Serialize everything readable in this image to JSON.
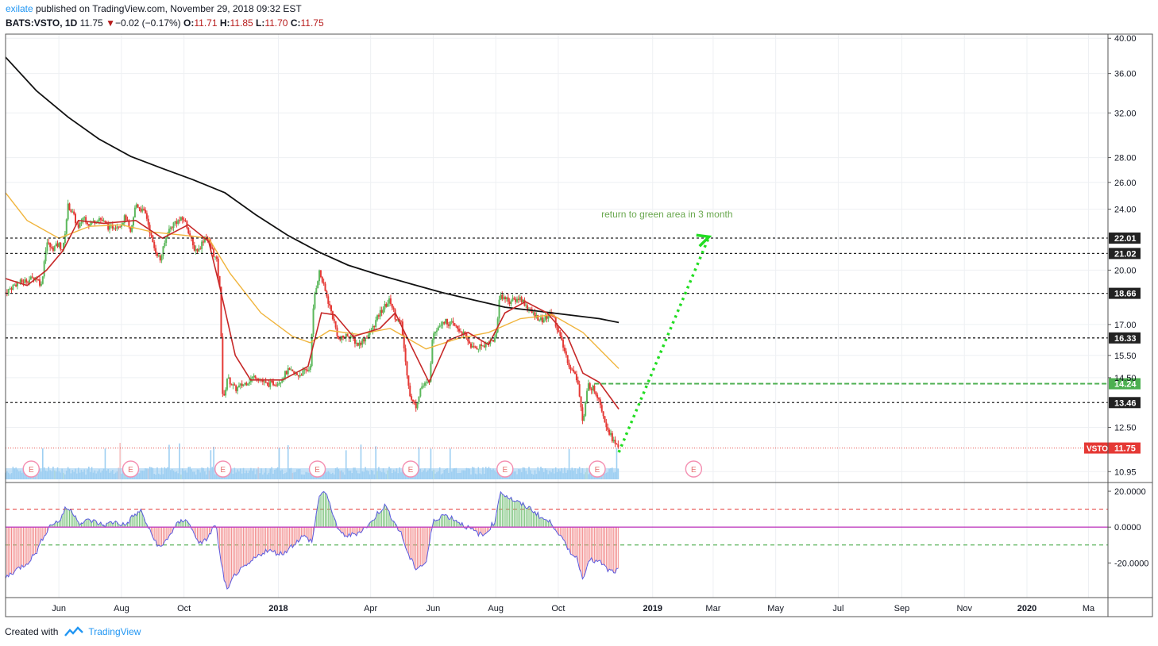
{
  "header": {
    "user": "exilate",
    "published": "published on TradingView.com, November 29, 2018 09:32 EST",
    "symbol": "BATS:VSTO, 1D",
    "last": "11.75",
    "change": "−0.02 (−0.17%)",
    "o_label": "O:",
    "o": "11.71",
    "h_label": "H:",
    "h": "11.85",
    "l_label": "L:",
    "l": "11.70",
    "c_label": "C:",
    "c": "11.75"
  },
  "footer": {
    "created": "Created with",
    "brand": "TradingView"
  },
  "colors": {
    "up": "#5cb85c",
    "down": "#e53935",
    "ma_short": "#c62828",
    "ma_mid": "#f0b43c",
    "ma_long": "#111111",
    "volume": "#9ecff2",
    "arrow": "#22dd22",
    "green_line": "#4caf50",
    "osc_up": "#79c27a",
    "osc_down": "#f28c8c",
    "osc_line": "#5c5ce0",
    "zero_line": "#c040c0"
  },
  "chart_data": {
    "type": "candlestick",
    "y_scale": "log",
    "ylim": [
      10.7,
      40.5
    ],
    "xlim": [
      "2017-04-10",
      "2020-03-20"
    ],
    "x_ticks": [
      {
        "date": "2017-06-01",
        "label": "Jun",
        "bold": false
      },
      {
        "date": "2017-08-01",
        "label": "Aug",
        "bold": false
      },
      {
        "date": "2017-10-01",
        "label": "Oct",
        "bold": false
      },
      {
        "date": "2018-01-01",
        "label": "2018",
        "bold": true
      },
      {
        "date": "2018-04-01",
        "label": "Apr",
        "bold": false
      },
      {
        "date": "2018-06-01",
        "label": "Jun",
        "bold": false
      },
      {
        "date": "2018-08-01",
        "label": "Aug",
        "bold": false
      },
      {
        "date": "2018-10-01",
        "label": "Oct",
        "bold": false
      },
      {
        "date": "2019-01-01",
        "label": "2019",
        "bold": true
      },
      {
        "date": "2019-03-01",
        "label": "Mar",
        "bold": false
      },
      {
        "date": "2019-05-01",
        "label": "May",
        "bold": false
      },
      {
        "date": "2019-07-01",
        "label": "Jul",
        "bold": false
      },
      {
        "date": "2019-09-01",
        "label": "Sep",
        "bold": false
      },
      {
        "date": "2019-11-01",
        "label": "Nov",
        "bold": false
      },
      {
        "date": "2020-01-01",
        "label": "2020",
        "bold": true
      },
      {
        "date": "2020-03-01",
        "label": "Ma",
        "bold": false
      }
    ],
    "y_ticks": [
      "40.00",
      "36.00",
      "32.00",
      "28.00",
      "26.00",
      "24.00",
      "20.00",
      "17.00",
      "15.50",
      "14.50",
      "12.50",
      "10.95"
    ],
    "close_path": [
      [
        "2017-04-10",
        18.7
      ],
      [
        "2017-04-20",
        19.2
      ],
      [
        "2017-05-01",
        19.4
      ],
      [
        "2017-05-10",
        19.6
      ],
      [
        "2017-05-15",
        19.1
      ],
      [
        "2017-05-20",
        21.8
      ],
      [
        "2017-05-25",
        21.3
      ],
      [
        "2017-06-01",
        21.6
      ],
      [
        "2017-06-05",
        21.2
      ],
      [
        "2017-06-10",
        24.3
      ],
      [
        "2017-06-15",
        23.6
      ],
      [
        "2017-06-20",
        22.6
      ],
      [
        "2017-06-25",
        23.5
      ],
      [
        "2017-07-01",
        22.9
      ],
      [
        "2017-07-10",
        23.4
      ],
      [
        "2017-07-20",
        22.7
      ],
      [
        "2017-08-01",
        23.0
      ],
      [
        "2017-08-05",
        23.5
      ],
      [
        "2017-08-10",
        22.2
      ],
      [
        "2017-08-15",
        24.4
      ],
      [
        "2017-08-25",
        23.6
      ],
      [
        "2017-09-01",
        21.5
      ],
      [
        "2017-09-08",
        20.6
      ],
      [
        "2017-09-15",
        22.4
      ],
      [
        "2017-09-22",
        23.1
      ],
      [
        "2017-10-01",
        23.3
      ],
      [
        "2017-10-05",
        22.6
      ],
      [
        "2017-10-10",
        21.4
      ],
      [
        "2017-10-15",
        21.2
      ],
      [
        "2017-10-22",
        22.2
      ],
      [
        "2017-10-28",
        21.3
      ],
      [
        "2017-11-02",
        20.5
      ],
      [
        "2017-11-05",
        18.8
      ],
      [
        "2017-11-08",
        13.3
      ],
      [
        "2017-11-12",
        14.5
      ],
      [
        "2017-11-20",
        14.0
      ],
      [
        "2017-12-01",
        14.3
      ],
      [
        "2017-12-10",
        14.6
      ],
      [
        "2017-12-20",
        14.2
      ],
      [
        "2018-01-01",
        14.3
      ],
      [
        "2018-01-10",
        14.8
      ],
      [
        "2018-01-20",
        14.6
      ],
      [
        "2018-02-01",
        14.9
      ],
      [
        "2018-02-05",
        18.5
      ],
      [
        "2018-02-10",
        19.9
      ],
      [
        "2018-02-15",
        18.9
      ],
      [
        "2018-02-25",
        17.0
      ],
      [
        "2018-03-01",
        16.2
      ],
      [
        "2018-03-10",
        16.5
      ],
      [
        "2018-03-20",
        16.0
      ],
      [
        "2018-04-01",
        16.6
      ],
      [
        "2018-04-10",
        17.6
      ],
      [
        "2018-04-20",
        18.3
      ],
      [
        "2018-04-25",
        17.4
      ],
      [
        "2018-05-01",
        17.0
      ],
      [
        "2018-05-05",
        15.2
      ],
      [
        "2018-05-10",
        13.6
      ],
      [
        "2018-05-15",
        13.3
      ],
      [
        "2018-05-20",
        14.1
      ],
      [
        "2018-05-28",
        14.3
      ],
      [
        "2018-06-01",
        16.6
      ],
      [
        "2018-06-10",
        17.2
      ],
      [
        "2018-06-20",
        17.0
      ],
      [
        "2018-07-01",
        16.5
      ],
      [
        "2018-07-10",
        15.8
      ],
      [
        "2018-07-20",
        16.0
      ],
      [
        "2018-08-01",
        16.3
      ],
      [
        "2018-08-05",
        18.6
      ],
      [
        "2018-08-15",
        18.2
      ],
      [
        "2018-08-25",
        18.4
      ],
      [
        "2018-09-05",
        17.6
      ],
      [
        "2018-09-15",
        17.2
      ],
      [
        "2018-09-25",
        17.6
      ],
      [
        "2018-10-05",
        16.0
      ],
      [
        "2018-10-12",
        15.0
      ],
      [
        "2018-10-20",
        14.4
      ],
      [
        "2018-10-25",
        12.6
      ],
      [
        "2018-10-30",
        14.2
      ],
      [
        "2018-11-05",
        14.0
      ],
      [
        "2018-11-10",
        13.6
      ],
      [
        "2018-11-15",
        12.8
      ],
      [
        "2018-11-20",
        12.3
      ],
      [
        "2018-11-25",
        11.9
      ],
      [
        "2018-11-29",
        11.75
      ]
    ],
    "ma_short": [
      [
        "2017-04-10",
        19.5
      ],
      [
        "2017-05-01",
        19.1
      ],
      [
        "2017-05-20",
        20.0
      ],
      [
        "2017-06-05",
        21.2
      ],
      [
        "2017-06-20",
        23.2
      ],
      [
        "2017-07-15",
        23.0
      ],
      [
        "2017-08-15",
        23.2
      ],
      [
        "2017-09-10",
        22.0
      ],
      [
        "2017-10-05",
        22.9
      ],
      [
        "2017-10-25",
        21.8
      ],
      [
        "2017-11-05",
        19.0
      ],
      [
        "2017-11-20",
        15.5
      ],
      [
        "2017-12-05",
        14.4
      ],
      [
        "2018-01-05",
        14.4
      ],
      [
        "2018-01-30",
        15.0
      ],
      [
        "2018-02-12",
        17.6
      ],
      [
        "2018-02-25",
        17.5
      ],
      [
        "2018-03-15",
        16.4
      ],
      [
        "2018-04-10",
        16.8
      ],
      [
        "2018-04-25",
        17.6
      ],
      [
        "2018-05-10",
        16.0
      ],
      [
        "2018-05-28",
        14.3
      ],
      [
        "2018-06-15",
        16.2
      ],
      [
        "2018-07-05",
        16.6
      ],
      [
        "2018-07-25",
        16.0
      ],
      [
        "2018-08-10",
        17.6
      ],
      [
        "2018-08-30",
        18.2
      ],
      [
        "2018-09-20",
        17.6
      ],
      [
        "2018-10-10",
        16.4
      ],
      [
        "2018-10-25",
        14.7
      ],
      [
        "2018-11-10",
        14.3
      ],
      [
        "2018-11-29",
        13.2
      ]
    ],
    "ma_mid": [
      [
        "2017-04-10",
        25.2
      ],
      [
        "2017-05-01",
        23.2
      ],
      [
        "2017-06-01",
        22.0
      ],
      [
        "2017-07-01",
        22.8
      ],
      [
        "2017-08-01",
        22.9
      ],
      [
        "2017-09-01",
        22.4
      ],
      [
        "2017-10-01",
        22.2
      ],
      [
        "2017-10-25",
        22.0
      ],
      [
        "2017-11-15",
        19.8
      ],
      [
        "2017-12-15",
        17.6
      ],
      [
        "2018-01-15",
        16.4
      ],
      [
        "2018-02-01",
        16.1
      ],
      [
        "2018-02-20",
        16.7
      ],
      [
        "2018-03-20",
        16.5
      ],
      [
        "2018-04-20",
        16.8
      ],
      [
        "2018-05-25",
        15.8
      ],
      [
        "2018-06-25",
        16.3
      ],
      [
        "2018-07-25",
        16.6
      ],
      [
        "2018-08-25",
        17.3
      ],
      [
        "2018-09-25",
        17.5
      ],
      [
        "2018-10-25",
        16.6
      ],
      [
        "2018-11-29",
        14.9
      ]
    ],
    "ma_long": [
      [
        "2017-04-10",
        37.8
      ],
      [
        "2017-05-10",
        34.2
      ],
      [
        "2017-06-10",
        31.6
      ],
      [
        "2017-07-10",
        29.6
      ],
      [
        "2017-08-10",
        28.1
      ],
      [
        "2017-09-10",
        27.1
      ],
      [
        "2017-10-10",
        26.2
      ],
      [
        "2017-11-10",
        25.2
      ],
      [
        "2017-12-10",
        23.6
      ],
      [
        "2018-01-10",
        22.2
      ],
      [
        "2018-02-10",
        21.1
      ],
      [
        "2018-03-10",
        20.3
      ],
      [
        "2018-04-10",
        19.7
      ],
      [
        "2018-05-10",
        19.2
      ],
      [
        "2018-06-10",
        18.7
      ],
      [
        "2018-07-10",
        18.3
      ],
      [
        "2018-08-10",
        17.9
      ],
      [
        "2018-09-10",
        17.7
      ],
      [
        "2018-10-10",
        17.5
      ],
      [
        "2018-11-10",
        17.3
      ],
      [
        "2018-11-29",
        17.1
      ]
    ],
    "h_levels": [
      {
        "value": 22.01,
        "label": "22.01",
        "style": "black"
      },
      {
        "value": 21.02,
        "label": "21.02",
        "style": "black"
      },
      {
        "value": 18.66,
        "label": "18.66",
        "style": "black"
      },
      {
        "value": 16.33,
        "label": "16.33",
        "style": "black"
      },
      {
        "value": 14.24,
        "label": "14.24",
        "style": "green",
        "from": "2018-11-05"
      },
      {
        "value": 13.46,
        "label": "13.46",
        "style": "black"
      }
    ],
    "last_price": {
      "symbol": "VSTO",
      "value": 11.75,
      "label": "11.75"
    },
    "earnings": [
      "2017-05-05",
      "2017-08-10",
      "2017-11-08",
      "2018-02-08",
      "2018-05-10",
      "2018-08-10",
      "2018-11-08",
      "2019-02-10"
    ],
    "earnings_label": "E",
    "annotation": {
      "text": "return to green area in 3 month",
      "date": "2019-01-15",
      "value": 23.4
    },
    "arrow": {
      "from": [
        "2018-11-29",
        11.6
      ],
      "to": [
        "2019-02-25",
        22.1
      ]
    },
    "oscillator": {
      "y_ticks": [
        "20.0000",
        "0.0000",
        "-20.0000"
      ],
      "ylim": [
        -38,
        24
      ],
      "upper": 10,
      "lower": -10,
      "values": [
        [
          "2017-04-10",
          -28
        ],
        [
          "2017-04-20",
          -24
        ],
        [
          "2017-05-01",
          -20
        ],
        [
          "2017-05-10",
          -14
        ],
        [
          "2017-05-18",
          -4
        ],
        [
          "2017-05-25",
          2
        ],
        [
          "2017-06-01",
          3
        ],
        [
          "2017-06-08",
          11
        ],
        [
          "2017-06-15",
          8
        ],
        [
          "2017-06-22",
          2
        ],
        [
          "2017-07-01",
          4
        ],
        [
          "2017-07-15",
          1
        ],
        [
          "2017-07-25",
          3
        ],
        [
          "2017-08-05",
          1
        ],
        [
          "2017-08-12",
          6
        ],
        [
          "2017-08-20",
          9
        ],
        [
          "2017-08-30",
          -4
        ],
        [
          "2017-09-08",
          -12
        ],
        [
          "2017-09-15",
          -6
        ],
        [
          "2017-09-25",
          2
        ],
        [
          "2017-10-03",
          5
        ],
        [
          "2017-10-10",
          -3
        ],
        [
          "2017-10-18",
          -10
        ],
        [
          "2017-10-25",
          -5
        ],
        [
          "2017-11-01",
          2
        ],
        [
          "2017-11-06",
          -20
        ],
        [
          "2017-11-12",
          -36
        ],
        [
          "2017-11-20",
          -26
        ],
        [
          "2017-12-01",
          -22
        ],
        [
          "2017-12-10",
          -17
        ],
        [
          "2017-12-20",
          -13
        ],
        [
          "2018-01-05",
          -15
        ],
        [
          "2018-01-15",
          -10
        ],
        [
          "2018-01-25",
          -5
        ],
        [
          "2018-02-03",
          -8
        ],
        [
          "2018-02-10",
          18
        ],
        [
          "2018-02-15",
          20
        ],
        [
          "2018-02-22",
          10
        ],
        [
          "2018-03-01",
          -3
        ],
        [
          "2018-03-10",
          -5
        ],
        [
          "2018-03-20",
          -3
        ],
        [
          "2018-04-01",
          2
        ],
        [
          "2018-04-08",
          8
        ],
        [
          "2018-04-15",
          12
        ],
        [
          "2018-04-22",
          5
        ],
        [
          "2018-05-01",
          -4
        ],
        [
          "2018-05-08",
          -16
        ],
        [
          "2018-05-15",
          -23
        ],
        [
          "2018-05-25",
          -20
        ],
        [
          "2018-06-01",
          3
        ],
        [
          "2018-06-10",
          7
        ],
        [
          "2018-06-20",
          5
        ],
        [
          "2018-07-01",
          1
        ],
        [
          "2018-07-10",
          -2
        ],
        [
          "2018-07-20",
          -5
        ],
        [
          "2018-08-01",
          4
        ],
        [
          "2018-08-05",
          20
        ],
        [
          "2018-08-15",
          16
        ],
        [
          "2018-08-25",
          13
        ],
        [
          "2018-09-05",
          10
        ],
        [
          "2018-09-15",
          5
        ],
        [
          "2018-09-25",
          2
        ],
        [
          "2018-10-01",
          -3
        ],
        [
          "2018-10-10",
          -12
        ],
        [
          "2018-10-20",
          -18
        ],
        [
          "2018-10-25",
          -30
        ],
        [
          "2018-10-30",
          -18
        ],
        [
          "2018-11-05",
          -19
        ],
        [
          "2018-11-12",
          -20
        ],
        [
          "2018-11-18",
          -24
        ],
        [
          "2018-11-24",
          -25
        ],
        [
          "2018-11-29",
          -24
        ]
      ]
    }
  }
}
